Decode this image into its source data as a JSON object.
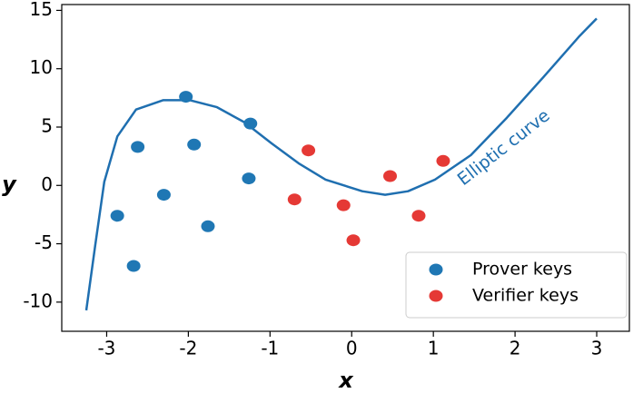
{
  "chart_data": {
    "type": "scatter",
    "xlabel": "x",
    "ylabel": "y",
    "xlim": [
      -3.55,
      3.4
    ],
    "ylim": [
      -12.5,
      15.5
    ],
    "xticks": [
      -3,
      -2,
      -1,
      0,
      1,
      2,
      3
    ],
    "yticks": [
      -10,
      -5,
      0,
      5,
      10,
      15
    ],
    "legend": "lower right",
    "series": [
      {
        "name": "Elliptic curve",
        "type": "line",
        "color": "#1f6fb0",
        "x": [
          -3.25,
          -3.14,
          -3.03,
          -2.87,
          -2.64,
          -2.31,
          -1.98,
          -1.65,
          -1.31,
          -0.98,
          -0.65,
          -0.32,
          0.13,
          0.41,
          0.69,
          1.02,
          1.46,
          1.9,
          2.35,
          2.79,
          3.0
        ],
        "values": [
          -10.7,
          -5.1,
          0.3,
          4.2,
          6.5,
          7.3,
          7.3,
          6.7,
          5.4,
          3.6,
          1.9,
          0.5,
          -0.5,
          -0.8,
          -0.5,
          0.5,
          2.6,
          5.8,
          9.3,
          12.8,
          14.3
        ]
      },
      {
        "name": "Prover keys",
        "type": "scatter",
        "color": "#1f77b4",
        "x": [
          -2.03,
          -2.62,
          -1.93,
          -1.24,
          -2.87,
          -2.3,
          -1.26,
          -1.76,
          -2.67
        ],
        "values": [
          7.6,
          3.3,
          3.5,
          5.3,
          -2.6,
          -0.8,
          0.6,
          -3.5,
          -6.9
        ]
      },
      {
        "name": "Verifier keys",
        "type": "scatter",
        "color": "#e53935",
        "x": [
          -0.53,
          -0.7,
          -0.1,
          0.02,
          0.47,
          0.82,
          1.12
        ],
        "values": [
          3.0,
          -1.2,
          -1.7,
          -4.7,
          0.8,
          -2.6,
          2.1
        ]
      }
    ]
  }
}
